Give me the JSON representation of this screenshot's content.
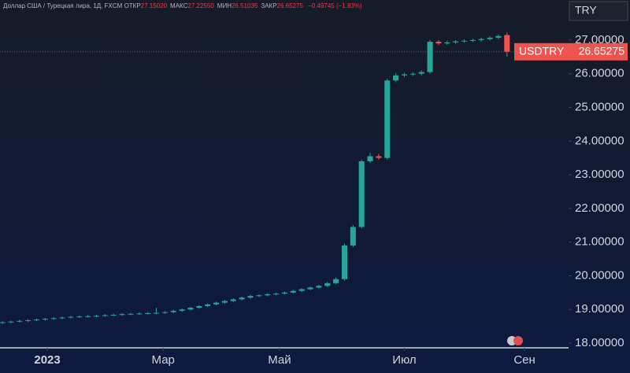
{
  "header": {
    "title": "Доллар США / Турецкая лира, 1Д, FXCM",
    "stats": [
      {
        "label": "ОТКР",
        "value": "27.15020"
      },
      {
        "label": "МАКС",
        "value": "27.22550"
      },
      {
        "label": "МИН",
        "value": "26.51035"
      },
      {
        "label": "ЗАКР",
        "value": "26.65275"
      }
    ],
    "change": "−0.49745 (−1.83%)"
  },
  "chart_data": {
    "type": "candlestick",
    "symbol": "USDTRY",
    "currency": "TRY",
    "last_price_label": "26.65275",
    "open": [
      18.6,
      18.62,
      18.64,
      18.66,
      18.68,
      18.7,
      18.72,
      18.74,
      18.76,
      18.78,
      18.79,
      18.8,
      18.81,
      18.83,
      18.84,
      18.86,
      18.87,
      18.88,
      18.89,
      18.9,
      18.92,
      18.96,
      19.0,
      19.05,
      19.1,
      19.15,
      19.2,
      19.25,
      19.3,
      19.35,
      19.4,
      19.42,
      19.45,
      19.47,
      19.5,
      19.55,
      19.6,
      19.65,
      19.7,
      19.78,
      19.9,
      20.9,
      21.45,
      23.4,
      23.55,
      23.5,
      25.8,
      25.95,
      25.98,
      26.0,
      26.05,
      26.95,
      26.9,
      26.93,
      26.96,
      26.98,
      27.0,
      27.03,
      27.07,
      27.1502
    ],
    "high": [
      18.65,
      18.67,
      18.69,
      18.71,
      18.73,
      18.75,
      18.77,
      18.79,
      18.81,
      18.82,
      18.83,
      18.84,
      18.86,
      18.87,
      18.89,
      18.9,
      18.91,
      18.92,
      19.05,
      18.95,
      18.99,
      19.03,
      19.08,
      19.13,
      19.18,
      19.23,
      19.28,
      19.33,
      19.38,
      19.43,
      19.45,
      19.48,
      19.5,
      19.53,
      19.58,
      19.63,
      19.68,
      19.73,
      19.81,
      19.95,
      20.95,
      21.5,
      23.45,
      23.65,
      23.62,
      25.85,
      26.02,
      26.03,
      26.05,
      26.1,
      27.0,
      27.0,
      26.98,
      27.0,
      27.02,
      27.04,
      27.07,
      27.11,
      27.16,
      27.2255
    ],
    "low": [
      18.57,
      18.59,
      18.61,
      18.63,
      18.65,
      18.67,
      18.69,
      18.71,
      18.73,
      18.75,
      18.76,
      18.77,
      18.78,
      18.8,
      18.81,
      18.83,
      18.84,
      18.85,
      18.86,
      18.87,
      18.89,
      18.93,
      18.97,
      19.02,
      19.07,
      19.12,
      19.17,
      19.22,
      19.27,
      19.32,
      19.37,
      19.39,
      19.42,
      19.44,
      19.47,
      19.52,
      19.57,
      19.62,
      19.67,
      19.75,
      19.85,
      20.85,
      21.4,
      23.35,
      23.45,
      23.45,
      25.75,
      25.9,
      25.93,
      25.95,
      26.0,
      26.85,
      26.86,
      26.89,
      26.92,
      26.94,
      26.96,
      26.99,
      27.03,
      26.51035
    ],
    "close": [
      18.62,
      18.64,
      18.66,
      18.68,
      18.7,
      18.72,
      18.74,
      18.76,
      18.78,
      18.79,
      18.8,
      18.81,
      18.83,
      18.84,
      18.86,
      18.87,
      18.88,
      18.89,
      18.9,
      18.92,
      18.96,
      19.0,
      19.05,
      19.1,
      19.15,
      19.2,
      19.25,
      19.3,
      19.35,
      19.4,
      19.42,
      19.45,
      19.47,
      19.5,
      19.55,
      19.6,
      19.65,
      19.7,
      19.78,
      19.9,
      20.9,
      21.45,
      23.4,
      23.55,
      23.5,
      25.8,
      25.95,
      25.98,
      26.0,
      26.05,
      26.95,
      26.9,
      26.93,
      26.96,
      26.98,
      27.0,
      27.03,
      27.07,
      27.12,
      26.65275
    ],
    "up_color": "#26a69a",
    "down_color": "#ef5350",
    "ylim": [
      17.86,
      28.19
    ],
    "yticks": [
      {
        "value": 18,
        "label": "18.00000"
      },
      {
        "value": 19,
        "label": "19.00000"
      },
      {
        "value": 20,
        "label": "20.00000"
      },
      {
        "value": 21,
        "label": "21.00000"
      },
      {
        "value": 22,
        "label": "22.00000"
      },
      {
        "value": 23,
        "label": "23.00000"
      },
      {
        "value": 24,
        "label": "24.00000"
      },
      {
        "value": 25,
        "label": "25.00000"
      },
      {
        "value": 26,
        "label": "26.00000"
      },
      {
        "value": 27,
        "label": "27.00000"
      }
    ],
    "xlim": [
      -0.28,
      66.2
    ],
    "xticks": [
      {
        "value": 5.25,
        "label": "2023"
      },
      {
        "value": 18.8,
        "label": "Мар"
      },
      {
        "value": 32.4,
        "label": "Май"
      },
      {
        "value": 47.0,
        "label": "Июл"
      },
      {
        "value": 61.05,
        "label": "Сен"
      }
    ]
  }
}
